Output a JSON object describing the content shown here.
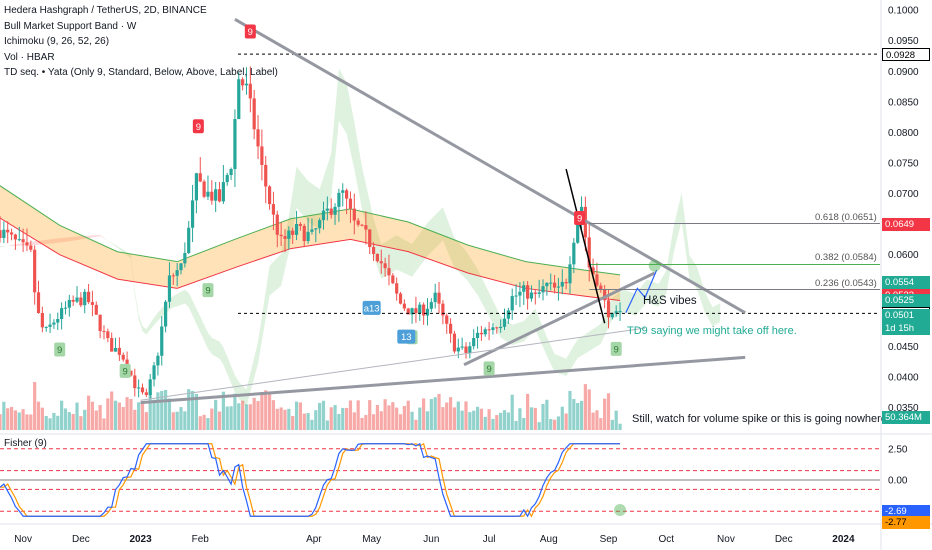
{
  "legend": {
    "title": "Hedera Hashgraph / TetherUS, 2D, BINANCE",
    "line2": "Bull Market Support Band · W",
    "line3": "Ichimoku (9, 26, 52, 26)",
    "line4": "Vol · HBAR",
    "line5": "TD seq. • Yata (Only 9, Standard, Below, Above, Label, Label)"
  },
  "indicator_title": "Fisher (9)",
  "price_tags": [
    {
      "label": "0.0928",
      "color": "#000000",
      "bg": "#ffffff",
      "value": 0.0928
    },
    {
      "label": "0.0649",
      "color": "#ffffff",
      "bg": "#f23645",
      "value": 0.0649
    },
    {
      "label": "0.0554",
      "color": "#ffffff",
      "bg": "#22ab94",
      "value": 0.0554
    },
    {
      "label": "0.0533",
      "color": "#ffffff",
      "bg": "#f23645",
      "value": 0.0533
    },
    {
      "label": "0.0525",
      "color": "#ffffff",
      "bg": "#22ab94",
      "value": 0.0525
    },
    {
      "label": "0.0504",
      "color": "#000000",
      "bg": "#ffffff",
      "value": 0.0504
    },
    {
      "label": "0.0501",
      "color": "#ffffff",
      "bg": "#22ab94",
      "value": 0.0501
    },
    {
      "label": "1d 15h",
      "color": "#ffffff",
      "bg": "#22ab94",
      "value": 0.049
    },
    {
      "label": "50.364M",
      "color": "#ffffff",
      "bg": "#22ab94",
      "value": "vol"
    }
  ],
  "fisher_tags": [
    {
      "label": "-2.69",
      "color": "#ffffff",
      "bg": "#2962ff",
      "value": -2.69
    },
    {
      "label": "-2.77",
      "color": "#000000",
      "bg": "#ff9800",
      "value": -2.77
    }
  ],
  "annotations": {
    "hs": "H&S vibes",
    "td9": "TD9 saying we might take off here.",
    "volume": "Still, watch for volume spike or this is going nowhere"
  },
  "fib_levels": [
    {
      "label": "0.618 (0.0651)",
      "value": 0.0651
    },
    {
      "label": "0.382 (0.0584)",
      "value": 0.0584
    },
    {
      "label": "0.236 (0.0543)",
      "value": 0.0543
    }
  ],
  "td_labels": [
    {
      "text": "9",
      "kind": "red",
      "date": "2023-02-27",
      "price": 0.0965
    },
    {
      "text": "9",
      "kind": "red",
      "date": "2023-01-31",
      "price": 0.081
    },
    {
      "text": "9",
      "kind": "red",
      "date": "2023-08-17",
      "price": 0.066
    },
    {
      "text": "9",
      "kind": "green",
      "date": "2022-11-20",
      "price": 0.0445
    },
    {
      "text": "9",
      "kind": "green",
      "date": "2022-12-24",
      "price": 0.041
    },
    {
      "text": "9",
      "kind": "green",
      "date": "2023-02-05",
      "price": 0.0542
    },
    {
      "text": "9",
      "kind": "green",
      "date": "2023-05-22",
      "price": 0.0465
    },
    {
      "text": "9",
      "kind": "green",
      "date": "2023-07-01",
      "price": 0.0414
    },
    {
      "text": "9",
      "kind": "green",
      "date": "2023-09-05",
      "price": 0.0446
    },
    {
      "text": "a13",
      "kind": "blue",
      "date": "2023-05-01",
      "price": 0.0513
    },
    {
      "text": "13",
      "kind": "blue",
      "date": "2023-05-19",
      "price": 0.0466
    }
  ],
  "chart_data": {
    "type": "candlestick",
    "symbol": "Hedera Hashgraph / TetherUS",
    "interval": "2D",
    "exchange": "BINANCE",
    "x_start": "2022-10-20",
    "x_end": "2024-01-20",
    "ylim": [
      0.031,
      0.101
    ],
    "y_ticks": [
      0.1,
      0.095,
      0.09,
      0.085,
      0.08,
      0.075,
      0.07,
      0.065,
      0.06,
      0.055,
      0.05,
      0.045,
      0.04,
      0.035
    ],
    "x_ticks": [
      {
        "label": "Nov",
        "date": "2022-11-01"
      },
      {
        "label": "Dec",
        "date": "2022-12-01"
      },
      {
        "label": "2023",
        "date": "2023-01-01"
      },
      {
        "label": "Feb",
        "date": "2023-02-01"
      },
      {
        "label": "Apr",
        "date": "2023-04-01"
      },
      {
        "label": "May",
        "date": "2023-05-01"
      },
      {
        "label": "Jun",
        "date": "2023-06-01"
      },
      {
        "label": "Jul",
        "date": "2023-07-01"
      },
      {
        "label": "Aug",
        "date": "2023-08-01"
      },
      {
        "label": "Sep",
        "date": "2023-09-01"
      },
      {
        "label": "Oct",
        "date": "2023-10-01"
      },
      {
        "label": "Nov",
        "date": "2023-11-01"
      },
      {
        "label": "Dec",
        "date": "2023-12-01"
      },
      {
        "label": "2024",
        "date": "2024-01-01"
      }
    ],
    "close_path": [
      [
        "2022-10-20",
        0.064
      ],
      [
        "2022-10-28",
        0.062
      ],
      [
        "2022-11-05",
        0.06
      ],
      [
        "2022-11-08",
        0.051
      ],
      [
        "2022-11-12",
        0.047
      ],
      [
        "2022-11-18",
        0.0495
      ],
      [
        "2022-11-26",
        0.052
      ],
      [
        "2022-12-04",
        0.053
      ],
      [
        "2022-12-10",
        0.049
      ],
      [
        "2022-12-16",
        0.045
      ],
      [
        "2022-12-22",
        0.044
      ],
      [
        "2022-12-30",
        0.038
      ],
      [
        "2023-01-04",
        0.0365
      ],
      [
        "2023-01-10",
        0.044
      ],
      [
        "2023-01-16",
        0.056
      ],
      [
        "2023-01-22",
        0.058
      ],
      [
        "2023-01-26",
        0.064
      ],
      [
        "2023-01-30",
        0.072
      ],
      [
        "2023-02-05",
        0.07
      ],
      [
        "2023-02-11",
        0.069
      ],
      [
        "2023-02-17",
        0.075
      ],
      [
        "2023-02-21",
        0.089
      ],
      [
        "2023-02-25",
        0.087
      ],
      [
        "2023-03-01",
        0.081
      ],
      [
        "2023-03-05",
        0.074
      ],
      [
        "2023-03-11",
        0.066
      ],
      [
        "2023-03-15",
        0.062
      ],
      [
        "2023-03-23",
        0.064
      ],
      [
        "2023-03-31",
        0.063
      ],
      [
        "2023-04-08",
        0.067
      ],
      [
        "2023-04-16",
        0.07
      ],
      [
        "2023-04-22",
        0.065
      ],
      [
        "2023-04-28",
        0.063
      ],
      [
        "2023-05-04",
        0.06
      ],
      [
        "2023-05-10",
        0.056
      ],
      [
        "2023-05-16",
        0.052
      ],
      [
        "2023-05-22",
        0.0505
      ],
      [
        "2023-05-28",
        0.051
      ],
      [
        "2023-06-03",
        0.053
      ],
      [
        "2023-06-09",
        0.048
      ],
      [
        "2023-06-13",
        0.045
      ],
      [
        "2023-06-19",
        0.044
      ],
      [
        "2023-06-25",
        0.047
      ],
      [
        "2023-07-01",
        0.048
      ],
      [
        "2023-07-07",
        0.049
      ],
      [
        "2023-07-13",
        0.053
      ],
      [
        "2023-07-19",
        0.054
      ],
      [
        "2023-07-25",
        0.053
      ],
      [
        "2023-07-31",
        0.055
      ],
      [
        "2023-08-06",
        0.054
      ],
      [
        "2023-08-10",
        0.056
      ],
      [
        "2023-08-14",
        0.063
      ],
      [
        "2023-08-18",
        0.068
      ],
      [
        "2023-08-22",
        0.058
      ],
      [
        "2023-08-26",
        0.056
      ],
      [
        "2023-08-30",
        0.052
      ],
      [
        "2023-09-03",
        0.0495
      ],
      [
        "2023-09-07",
        0.0501
      ]
    ],
    "support_band": [
      [
        "2022-10-20",
        0.066
      ],
      [
        "2022-11-20",
        0.06
      ],
      [
        "2022-12-20",
        0.056
      ],
      [
        "2023-01-20",
        0.0545
      ],
      [
        "2023-02-20",
        0.058
      ],
      [
        "2023-03-20",
        0.061
      ],
      [
        "2023-04-20",
        0.0625
      ],
      [
        "2023-05-20",
        0.0605
      ],
      [
        "2023-06-20",
        0.057
      ],
      [
        "2023-07-20",
        0.0545
      ],
      [
        "2023-08-20",
        0.0532
      ],
      [
        "2023-09-07",
        0.0525
      ]
    ],
    "trendlines": [
      {
        "from": [
          "2023-02-19",
          0.0985
        ],
        "to": [
          "2023-11-11",
          0.0505
        ],
        "color": "#9598a1"
      },
      {
        "from": [
          "2023-01-01",
          0.0358
        ],
        "to": [
          "2023-11-11",
          0.0432
        ],
        "color": "#9598a1"
      },
      {
        "from": [
          "2023-06-18",
          0.042
        ],
        "to": [
          "2023-09-25",
          0.057
        ],
        "color": "#9598a1"
      },
      {
        "from": [
          "2023-01-01",
          0.0362
        ],
        "to": [
          "2023-09-20",
          0.048
        ],
        "color": "#b2b5be"
      }
    ],
    "horizontal_levels": [
      {
        "value": 0.0928,
        "style": "dashed",
        "color": "#000000"
      },
      {
        "value": 0.0504,
        "style": "dashed",
        "color": "#000000"
      }
    ],
    "volume_label": "50.364M",
    "fisher": {
      "title": "Fisher (9)",
      "ylim": [
        -3.2,
        3.2
      ],
      "levels": [
        2.5,
        0.0,
        -2.5
      ],
      "level_labels": [
        "2.50",
        "0.00",
        "-2.50"
      ],
      "fisher_last": -2.69,
      "trigger_last": -2.77
    }
  }
}
